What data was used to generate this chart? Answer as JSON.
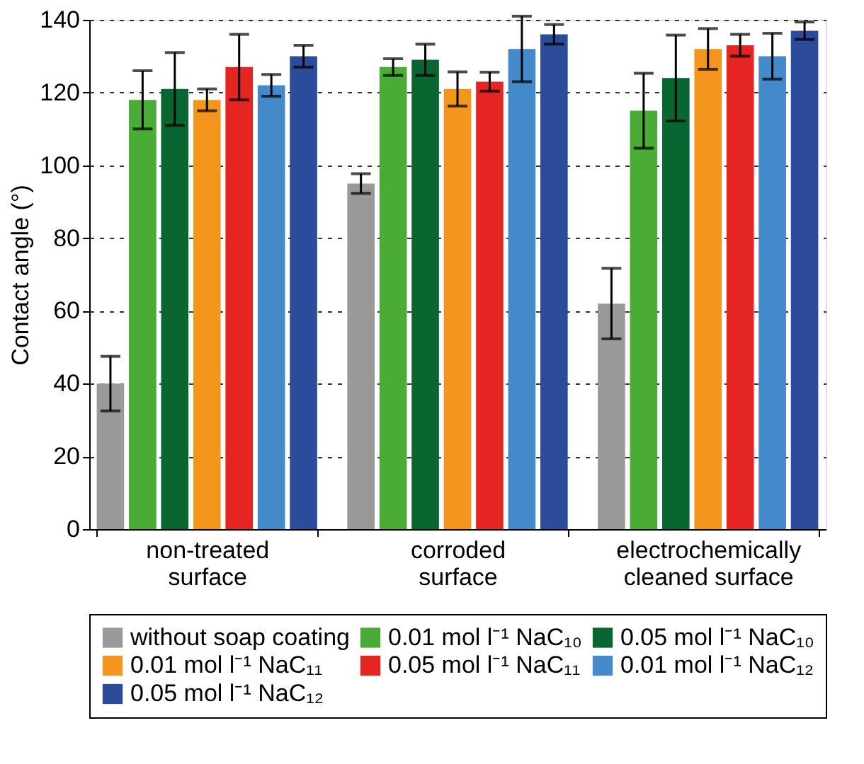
{
  "chart_data": {
    "type": "bar",
    "ylabel": "Contact angle (°)",
    "categories": [
      "non-treated\nsurface",
      "corroded\nsurface",
      "electrochemically\ncleaned surface"
    ],
    "ylim": [
      0,
      140
    ],
    "yticks": [
      0,
      20,
      40,
      60,
      80,
      100,
      120,
      140
    ],
    "grid": "y",
    "legend": "bottom",
    "series": [
      {
        "name": "without soap coating",
        "color": "#999999",
        "values": [
          40,
          95,
          62
        ],
        "errors": [
          7.5,
          2.7,
          9.7
        ]
      },
      {
        "name": "0.01 mol l⁻¹ NaC₁₀",
        "color": "#4aab36",
        "values": [
          118,
          127,
          115
        ],
        "errors": [
          8,
          2.3,
          10.3
        ]
      },
      {
        "name": "0.05 mol l⁻¹ NaC₁₀",
        "color": "#0a6631",
        "values": [
          121,
          129,
          124
        ],
        "errors": [
          10,
          4.3,
          11.8
        ]
      },
      {
        "name": "0.01 mol l⁻¹ NaC₁₁",
        "color": "#f4951d",
        "values": [
          118,
          121,
          132
        ],
        "errors": [
          3,
          4.7,
          5.6
        ]
      },
      {
        "name": "0.05 mol l⁻¹ NaC₁₁",
        "color": "#e42521",
        "values": [
          127,
          123,
          133
        ],
        "errors": [
          9,
          2.6,
          3
        ]
      },
      {
        "name": "0.01 mol l⁻¹ NaC₁₂",
        "color": "#448acb",
        "values": [
          122,
          132,
          130
        ],
        "errors": [
          3,
          9,
          6.3
        ]
      },
      {
        "name": "0.05 mol l⁻¹ NaC₁₂",
        "color": "#2c4b9b",
        "values": [
          130,
          136,
          137
        ],
        "errors": [
          3,
          2.7,
          2.4
        ]
      }
    ]
  }
}
